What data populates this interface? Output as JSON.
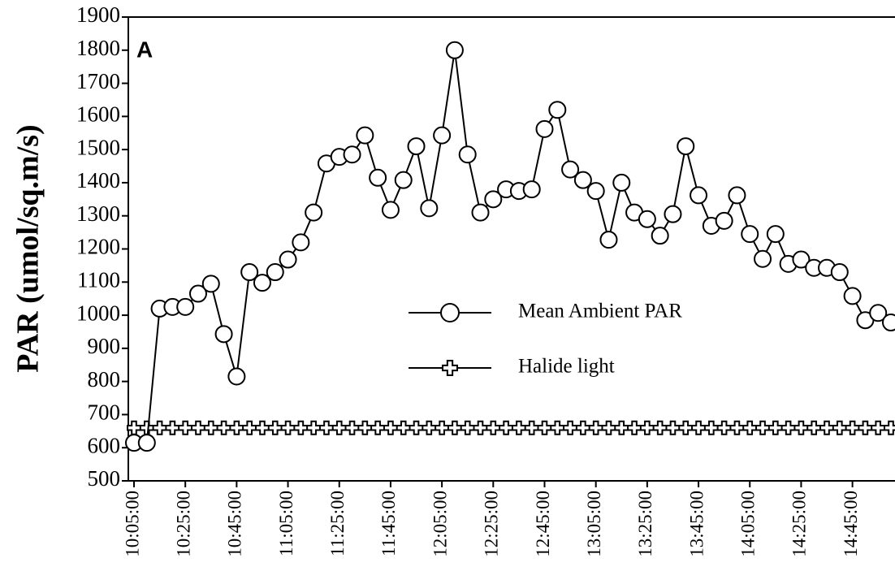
{
  "chart_data": {
    "type": "line",
    "y_label": "PAR (umol/sq.m/s)",
    "annotation": "A",
    "categories": [
      "10:05:00",
      null,
      null,
      null,
      "10:25:00",
      null,
      null,
      null,
      "10:45:00",
      null,
      null,
      null,
      "11:05:00",
      null,
      null,
      null,
      "11:25:00",
      null,
      null,
      null,
      "11:45:00",
      null,
      null,
      null,
      "12:05:00",
      null,
      null,
      null,
      "12:25:00",
      null,
      null,
      null,
      "12:45:00",
      null,
      null,
      null,
      "13:05:00",
      null,
      null,
      null,
      "13:25:00",
      null,
      null,
      null,
      "13:45:00",
      null,
      null,
      null,
      "14:05:00",
      null,
      null,
      null,
      "14:25:00",
      null,
      null,
      null,
      "14:45:00",
      null,
      null,
      null
    ],
    "series": [
      {
        "name": "Mean Ambient PAR",
        "color": "#000000",
        "marker": "circle",
        "values": [
          615,
          615,
          1020,
          1025,
          1025,
          1065,
          1095,
          943,
          815,
          1130,
          1098,
          1130,
          1168,
          1220,
          1310,
          1458,
          1478,
          1485,
          1543,
          1415,
          1318,
          1408,
          1510,
          1323,
          1543,
          1800,
          1485,
          1310,
          1350,
          1380,
          1375,
          1380,
          1562,
          1620,
          1440,
          1408,
          1375,
          1228,
          1400,
          1310,
          1290,
          1240,
          1305,
          1510,
          1362,
          1270,
          1285,
          1362,
          1245,
          1170,
          1245,
          1155,
          1168,
          1143,
          1143,
          1130,
          1058,
          985,
          1007,
          978
        ]
      },
      {
        "name": "Halide light",
        "color": "#000000",
        "marker": "plus",
        "values": [
          660,
          660,
          660,
          660,
          660,
          660,
          660,
          660,
          660,
          660,
          660,
          660,
          660,
          660,
          660,
          660,
          660,
          660,
          660,
          660,
          660,
          660,
          660,
          660,
          660,
          660,
          660,
          660,
          660,
          660,
          660,
          660,
          660,
          660,
          660,
          660,
          660,
          660,
          660,
          660,
          660,
          660,
          660,
          660,
          660,
          660,
          660,
          660,
          660,
          660,
          660,
          660,
          660,
          660,
          660,
          660,
          660,
          660,
          660,
          660
        ]
      }
    ],
    "ylim": [
      500,
      1900
    ],
    "yticks": [
      500,
      600,
      700,
      800,
      900,
      1000,
      1100,
      1200,
      1300,
      1400,
      1500,
      1600,
      1700,
      1800,
      1900
    ],
    "grid": false
  }
}
